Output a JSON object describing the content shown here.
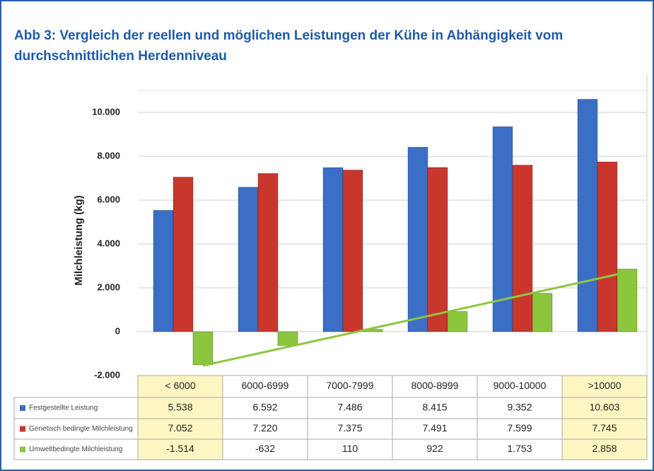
{
  "chart_data": {
    "type": "bar",
    "title": "Abb 3: Vergleich der reellen und möglichen Leistungen der Kühe in Abhängigkeit vom durchschnittlichen Herdenniveau",
    "y_label": "Milchleistung (kg)",
    "categories": [
      "< 6000",
      "6000-6999",
      "7000-7999",
      "8000-8999",
      "9000-10000",
      ">10000"
    ],
    "series": [
      {
        "name": "Festgestellte Leistung",
        "color": "#3b6fc6",
        "values": [
          5538,
          6592,
          7486,
          8415,
          9352,
          10603
        ],
        "value_labels": [
          "5.538",
          "6.592",
          "7.486",
          "8.415",
          "9.352",
          "10.603"
        ]
      },
      {
        "name": "Genetisch bedingte Milchleistung",
        "color": "#c9372c",
        "values": [
          7052,
          7220,
          7375,
          7491,
          7599,
          7745
        ],
        "value_labels": [
          "7.052",
          "7.220",
          "7.375",
          "7.491",
          "7.599",
          "7.745"
        ]
      },
      {
        "name": "Umweltbedingte Milchleistung",
        "color": "#8cc63f",
        "values": [
          -1514,
          -632,
          110,
          922,
          1753,
          2858
        ],
        "value_labels": [
          "-1.514",
          "-632",
          "110",
          "922",
          "1.753",
          "2.858"
        ]
      }
    ],
    "ylim": [
      -2000,
      11000
    ],
    "yticks": [
      {
        "value": -2000,
        "label": "-2.000"
      },
      0,
      {
        "value": 2000,
        "label": "2.000"
      },
      {
        "value": 4000,
        "label": "4.000"
      },
      {
        "value": 6000,
        "label": "6.000"
      },
      {
        "value": 8000,
        "label": "8.000"
      },
      {
        "value": 10000,
        "label": "10.000"
      }
    ],
    "grid": true
  }
}
